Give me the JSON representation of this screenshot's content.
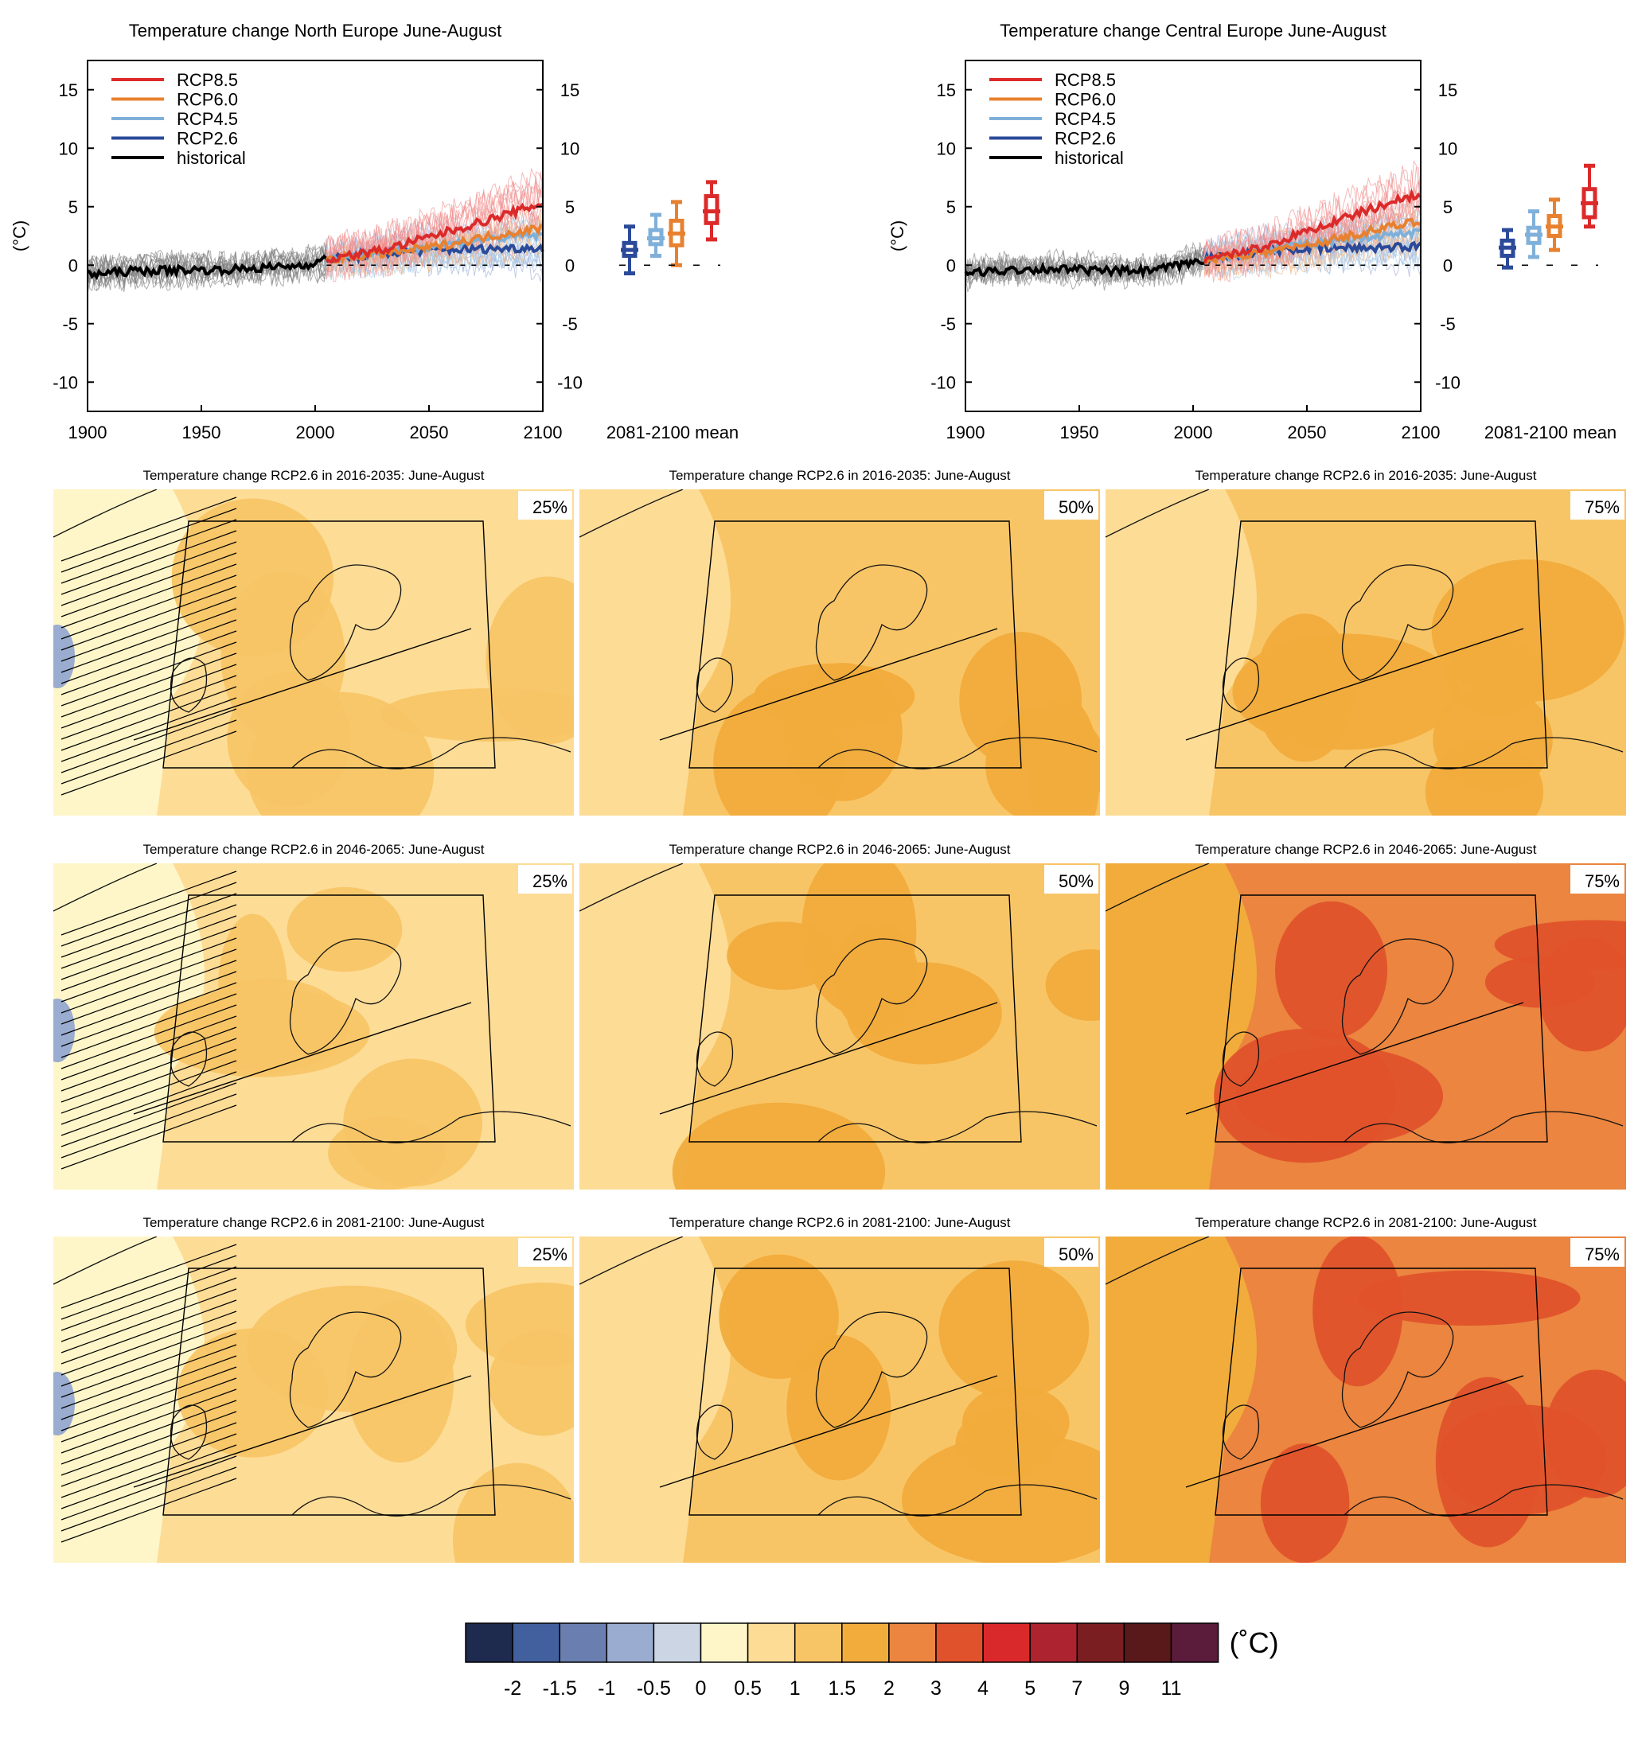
{
  "chart_data": [
    {
      "type": "line",
      "title": "Temperature change North Europe June-August",
      "ylabel": "(°C)",
      "xlim": [
        1900,
        2100
      ],
      "ylim": [
        -12.5,
        17.5
      ],
      "xticks": [
        "1900",
        "1950",
        "2000",
        "2050",
        "2100"
      ],
      "yticks": [
        "15",
        "10",
        "5",
        "0",
        "-5",
        "-10"
      ],
      "legend": [
        "RCP8.5",
        "RCP6.0",
        "RCP4.5",
        "RCP2.6",
        "historical"
      ],
      "legend_position": "top-left",
      "series": [
        {
          "name": "historical",
          "color": "#000000",
          "x": [
            1900,
            1920,
            1940,
            1960,
            1980,
            1995,
            2005
          ],
          "y": [
            -0.8,
            -0.5,
            -0.4,
            -0.4,
            -0.2,
            0.0,
            0.5
          ]
        },
        {
          "name": "RCP2.6",
          "color": "#2b4a99",
          "x": [
            2005,
            2030,
            2050,
            2075,
            2100
          ],
          "y": [
            0.5,
            1.0,
            1.3,
            1.4,
            1.5
          ]
        },
        {
          "name": "RCP4.5",
          "color": "#7fb0da",
          "x": [
            2005,
            2030,
            2050,
            2075,
            2100
          ],
          "y": [
            0.5,
            1.1,
            1.6,
            2.2,
            2.6
          ]
        },
        {
          "name": "RCP6.0",
          "color": "#e8812f",
          "x": [
            2005,
            2030,
            2050,
            2075,
            2100
          ],
          "y": [
            0.5,
            1.0,
            1.5,
            2.4,
            3.2
          ]
        },
        {
          "name": "RCP8.5",
          "color": "#dc2a2a",
          "x": [
            2005,
            2030,
            2050,
            2075,
            2100
          ],
          "y": [
            0.5,
            1.3,
            2.4,
            3.8,
            5.3
          ]
        }
      ],
      "boxplot_label": "2081-2100 mean",
      "boxplots": [
        {
          "name": "RCP2.6",
          "color": "#2b4a99",
          "min": -0.7,
          "q1": 0.8,
          "median": 1.3,
          "q3": 1.9,
          "max": 3.3
        },
        {
          "name": "RCP4.5",
          "color": "#7fb0da",
          "min": 0.8,
          "q1": 1.8,
          "median": 2.3,
          "q3": 3.0,
          "max": 4.3
        },
        {
          "name": "RCP6.0",
          "color": "#e8812f",
          "min": 0.0,
          "q1": 1.7,
          "median": 2.7,
          "q3": 3.8,
          "max": 5.4
        },
        {
          "name": "RCP8.5",
          "color": "#dc2a2a",
          "min": 2.2,
          "q1": 3.6,
          "median": 4.6,
          "q3": 5.9,
          "max": 7.1
        }
      ]
    },
    {
      "type": "line",
      "title": "Temperature change Central Europe June-August",
      "ylabel": "(°C)",
      "xlim": [
        1900,
        2100
      ],
      "ylim": [
        -12.5,
        17.5
      ],
      "xticks": [
        "1900",
        "1950",
        "2000",
        "2050",
        "2100"
      ],
      "yticks": [
        "15",
        "10",
        "5",
        "0",
        "-5",
        "-10"
      ],
      "legend": [
        "RCP8.5",
        "RCP6.0",
        "RCP4.5",
        "RCP2.6",
        "historical"
      ],
      "legend_position": "top-left",
      "series": [
        {
          "name": "historical",
          "color": "#000000",
          "x": [
            1900,
            1920,
            1940,
            1960,
            1980,
            1995,
            2005
          ],
          "y": [
            -0.7,
            -0.4,
            -0.3,
            -0.5,
            -0.5,
            0.0,
            0.5
          ]
        },
        {
          "name": "RCP2.6",
          "color": "#2b4a99",
          "x": [
            2005,
            2030,
            2050,
            2075,
            2100
          ],
          "y": [
            0.5,
            1.2,
            1.4,
            1.5,
            1.6
          ]
        },
        {
          "name": "RCP4.5",
          "color": "#7fb0da",
          "x": [
            2005,
            2030,
            2050,
            2075,
            2100
          ],
          "y": [
            0.5,
            1.2,
            1.8,
            2.4,
            2.8
          ]
        },
        {
          "name": "RCP6.0",
          "color": "#e8812f",
          "x": [
            2005,
            2030,
            2050,
            2075,
            2100
          ],
          "y": [
            0.5,
            1.1,
            1.7,
            2.8,
            3.8
          ]
        },
        {
          "name": "RCP8.5",
          "color": "#dc2a2a",
          "x": [
            2005,
            2030,
            2050,
            2075,
            2100
          ],
          "y": [
            0.5,
            1.5,
            2.9,
            4.6,
            6.2
          ]
        }
      ],
      "boxplot_label": "2081-2100 mean",
      "boxplots": [
        {
          "name": "RCP2.6",
          "color": "#2b4a99",
          "min": -0.2,
          "q1": 0.8,
          "median": 1.5,
          "q3": 2.1,
          "max": 3.0
        },
        {
          "name": "RCP4.5",
          "color": "#7fb0da",
          "min": 0.7,
          "q1": 1.9,
          "median": 2.6,
          "q3": 3.2,
          "max": 4.6
        },
        {
          "name": "RCP6.0",
          "color": "#e8812f",
          "min": 1.3,
          "q1": 2.5,
          "median": 3.3,
          "q3": 4.2,
          "max": 5.6
        },
        {
          "name": "RCP8.5",
          "color": "#dc2a2a",
          "min": 3.3,
          "q1": 4.1,
          "median": 5.3,
          "q3": 6.5,
          "max": 8.5
        }
      ]
    }
  ],
  "maps": [
    {
      "title": "Temperature change RCP2.6 in 2016-2035: June-August",
      "percentile": "25%",
      "dominant_bin": "0.5-1",
      "hatched": true
    },
    {
      "title": "Temperature change RCP2.6 in 2016-2035: June-August",
      "percentile": "50%",
      "dominant_bin": "1-1.5",
      "hatched": false
    },
    {
      "title": "Temperature change RCP2.6 in 2016-2035: June-August",
      "percentile": "75%",
      "dominant_bin": "1-1.5",
      "hatched": false
    },
    {
      "title": "Temperature change RCP2.6 in 2046-2065: June-August",
      "percentile": "25%",
      "dominant_bin": "0.5-1",
      "hatched": true
    },
    {
      "title": "Temperature change RCP2.6 in 2046-2065: June-August",
      "percentile": "50%",
      "dominant_bin": "1-1.5",
      "hatched": false
    },
    {
      "title": "Temperature change RCP2.6 in 2046-2065: June-August",
      "percentile": "75%",
      "dominant_bin": "2-3",
      "hatched": false
    },
    {
      "title": "Temperature change RCP2.6 in 2081-2100: June-August",
      "percentile": "25%",
      "dominant_bin": "0.5-1",
      "hatched": true
    },
    {
      "title": "Temperature change RCP2.6 in 2081-2100: June-August",
      "percentile": "50%",
      "dominant_bin": "1-1.5",
      "hatched": false
    },
    {
      "title": "Temperature change RCP2.6 in 2081-2100: June-August",
      "percentile": "75%",
      "dominant_bin": "2-3",
      "hatched": false
    }
  ],
  "colorbar": {
    "unit": "(˚C)",
    "labels": [
      "-2",
      "-1.5",
      "-1",
      "-0.5",
      "0",
      "0.5",
      "1",
      "1.5",
      "2",
      "3",
      "4",
      "5",
      "7",
      "9",
      "11"
    ],
    "colors": [
      "#1f2a4f",
      "#43609e",
      "#6a7eb0",
      "#9aaccf",
      "#ccd5e3",
      "#fef6c8",
      "#fddc96",
      "#f8c566",
      "#f1ac3c",
      "#eb853f",
      "#e0522b",
      "#d9292b",
      "#ad232f",
      "#7b1e22",
      "#591819",
      "#5b1b3b"
    ]
  }
}
